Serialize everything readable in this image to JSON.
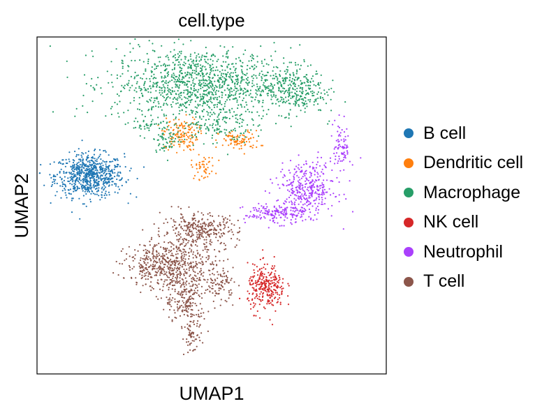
{
  "chart_data": {
    "type": "scatter",
    "title": "cell.type",
    "xlabel": "UMAP1",
    "ylabel": "UMAP2",
    "xlim": [
      -10,
      10
    ],
    "ylim": [
      -10,
      10
    ],
    "grid": false,
    "legend_position": "right",
    "series": [
      {
        "name": "B cell",
        "color": "#1f77b4",
        "clusters": [
          {
            "cx": -7.1,
            "cy": 1.8,
            "sx": 1.0,
            "sy": 0.65,
            "n": 700
          }
        ]
      },
      {
        "name": "Dendritic cell",
        "color": "#ff7f0e",
        "clusters": [
          {
            "cx": -1.8,
            "cy": 4.3,
            "sx": 0.5,
            "sy": 0.5,
            "n": 140
          },
          {
            "cx": 1.6,
            "cy": 3.9,
            "sx": 0.6,
            "sy": 0.3,
            "n": 90
          },
          {
            "cx": -0.5,
            "cy": 2.3,
            "sx": 0.35,
            "sy": 0.35,
            "n": 50
          }
        ]
      },
      {
        "name": "Macrophage",
        "color": "#279e68",
        "clusters": [
          {
            "cx": -0.6,
            "cy": 7.3,
            "sx": 2.6,
            "sy": 1.1,
            "n": 1200
          },
          {
            "cx": 4.8,
            "cy": 7.0,
            "sx": 0.9,
            "sy": 0.75,
            "n": 260
          },
          {
            "cx": -2.6,
            "cy": 4.1,
            "sx": 0.4,
            "sy": 0.45,
            "n": 60
          },
          {
            "cx": -3.8,
            "cy": 4.8,
            "sx": 0.35,
            "sy": 0.2,
            "n": 25
          },
          {
            "cx": 0.3,
            "cy": 4.9,
            "sx": 1.0,
            "sy": 0.6,
            "n": 120
          }
        ]
      },
      {
        "name": "NK cell",
        "color": "#d62728",
        "clusters": [
          {
            "cx": 3.2,
            "cy": -5.0,
            "sx": 0.55,
            "sy": 0.7,
            "n": 280
          }
        ]
      },
      {
        "name": "Neutrophil",
        "color": "#aa40fc",
        "clusters": [
          {
            "cx": 5.5,
            "cy": 1.0,
            "sx": 0.85,
            "sy": 0.8,
            "n": 360
          },
          {
            "cx": 7.6,
            "cy": 3.6,
            "sx": 0.25,
            "sy": 0.8,
            "n": 80
          },
          {
            "cx": 3.7,
            "cy": -0.5,
            "sx": 0.9,
            "sy": 0.3,
            "n": 160
          }
        ]
      },
      {
        "name": "T cell",
        "color": "#8c564b",
        "clusters": [
          {
            "cx": -2.4,
            "cy": -3.6,
            "sx": 1.3,
            "sy": 0.7,
            "n": 560
          },
          {
            "cx": -0.7,
            "cy": -1.5,
            "sx": 1.1,
            "sy": 0.5,
            "n": 320
          },
          {
            "cx": -1.5,
            "cy": -5.7,
            "sx": 0.6,
            "sy": 0.7,
            "n": 180
          },
          {
            "cx": 0.5,
            "cy": -4.8,
            "sx": 0.4,
            "sy": 0.5,
            "n": 90
          },
          {
            "cx": -1.1,
            "cy": -7.8,
            "sx": 0.25,
            "sy": 0.6,
            "n": 70
          }
        ]
      }
    ]
  }
}
